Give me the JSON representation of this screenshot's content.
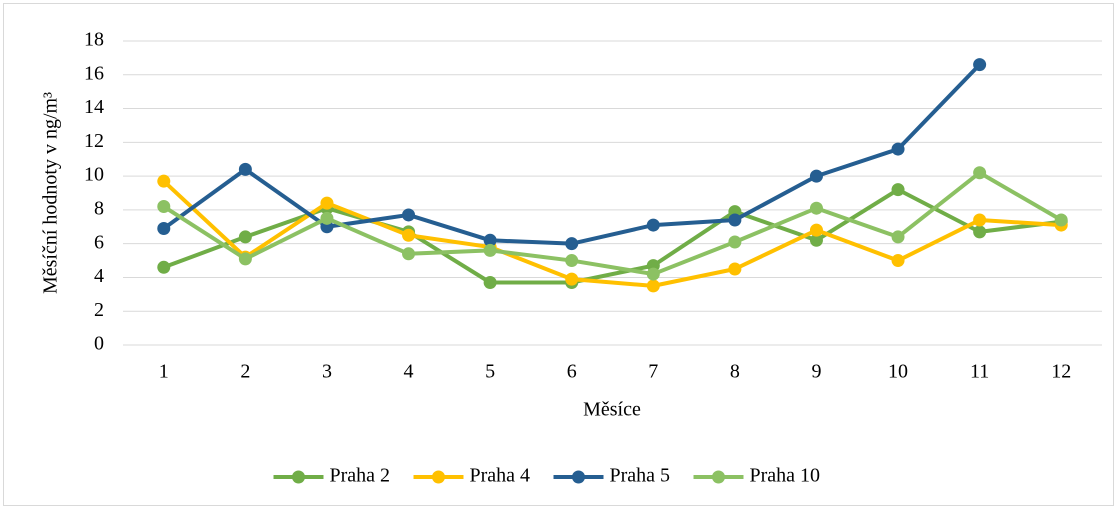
{
  "chart_data": {
    "type": "line",
    "x_label": "Měsíce",
    "y_label": "Měsíční hodnoty v ng/m³",
    "categories": [
      "1",
      "2",
      "3",
      "4",
      "5",
      "6",
      "7",
      "8",
      "9",
      "10",
      "11",
      "12"
    ],
    "series": [
      {
        "name": "Praha 2",
        "color": "#70ad47",
        "values": [
          4.6,
          6.4,
          8.1,
          6.7,
          3.7,
          3.7,
          4.7,
          7.9,
          6.2,
          9.2,
          6.7,
          7.3
        ]
      },
      {
        "name": "Praha 4",
        "color": "#ffc000",
        "values": [
          9.7,
          5.2,
          8.4,
          6.5,
          5.8,
          3.9,
          3.5,
          4.5,
          6.8,
          5.0,
          7.4,
          7.1
        ]
      },
      {
        "name": "Praha 5",
        "color": "#255e91",
        "values": [
          6.9,
          10.4,
          7.0,
          7.7,
          6.2,
          6.0,
          7.1,
          7.4,
          10.0,
          11.6,
          16.6,
          null
        ]
      },
      {
        "name": "Praha 10",
        "color": "#8cc163",
        "values": [
          8.2,
          5.1,
          7.5,
          5.4,
          5.6,
          5.0,
          4.2,
          6.1,
          8.1,
          6.4,
          10.2,
          7.4
        ]
      }
    ],
    "ylim": [
      0,
      18
    ],
    "yticks": [
      0,
      2,
      4,
      6,
      8,
      10,
      12,
      14,
      16,
      18
    ],
    "grid": true,
    "legend": "bottom"
  }
}
